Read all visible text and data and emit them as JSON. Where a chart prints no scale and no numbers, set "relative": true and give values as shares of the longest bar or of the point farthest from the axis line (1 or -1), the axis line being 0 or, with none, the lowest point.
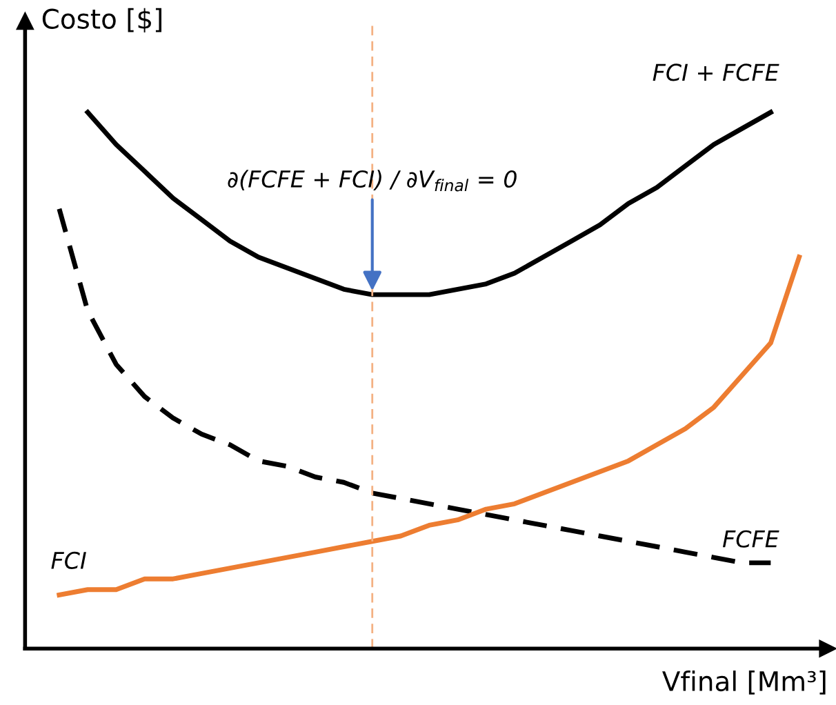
{
  "chart_data": {
    "type": "line",
    "relative": true,
    "xlabel": "Vfinal [Mm³]",
    "ylabel": "Costo [$]",
    "categories": [
      null,
      null,
      null,
      null,
      null,
      null,
      null,
      null,
      null,
      null,
      null,
      null,
      null,
      null,
      null,
      null,
      null,
      null,
      null,
      null,
      null,
      null,
      null,
      null,
      null,
      null,
      null
    ],
    "series": [
      {
        "name": "FCI + FCFE",
        "color": "#000000",
        "line_style": "solid",
        "values": [
          null,
          1.0,
          0.94,
          0.89,
          0.84,
          0.8,
          0.76,
          0.73,
          0.71,
          0.69,
          0.67,
          0.66,
          0.66,
          0.66,
          0.67,
          0.68,
          0.7,
          0.73,
          0.76,
          0.79,
          0.83,
          0.86,
          0.9,
          0.94,
          0.97,
          1.0,
          null
        ]
      },
      {
        "name": "FCFE",
        "color": "#000000",
        "line_style": "dashed",
        "values": [
          0.82,
          0.63,
          0.53,
          0.47,
          0.43,
          0.4,
          0.38,
          0.35,
          0.34,
          0.32,
          0.31,
          0.29,
          0.28,
          0.27,
          0.26,
          0.25,
          0.24,
          0.23,
          0.22,
          0.21,
          0.2,
          0.19,
          0.18,
          0.17,
          0.16,
          0.16,
          null
        ]
      },
      {
        "name": "FCI",
        "color": "#ed7d31",
        "line_style": "solid",
        "values": [
          0.1,
          0.11,
          0.11,
          0.13,
          0.13,
          0.14,
          0.15,
          0.16,
          0.17,
          0.18,
          0.19,
          0.2,
          0.21,
          0.23,
          0.24,
          0.26,
          0.27,
          0.29,
          0.31,
          0.33,
          0.35,
          0.38,
          0.41,
          0.45,
          0.51,
          0.57,
          0.73
        ]
      }
    ],
    "annotations": [
      {
        "text": "∂(FCFE + FCI) / ∂V$_{final}$ = 0",
        "y": 0.66
      }
    ],
    "legend": false,
    "marker": "none"
  }
}
